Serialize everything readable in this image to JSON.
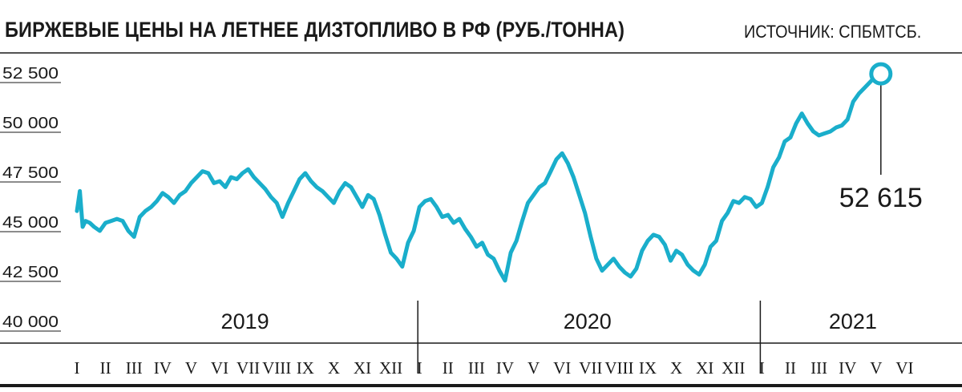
{
  "title": "БИРЖЕВЫЕ ЦЕНЫ НА ЛЕТНЕЕ ДИЗТОПЛИВО В РФ (РУБ./ТОННА)",
  "source": "ИСТОЧНИК: СПБМТСБ.",
  "colors": {
    "line": "#1aaecb",
    "text": "#1a1a1a",
    "rule": "#1a1a1a"
  },
  "chart_data": {
    "type": "line",
    "ylim": [
      40000,
      52500
    ],
    "yticks": [
      {
        "value": 52500,
        "label": "52 500"
      },
      {
        "value": 50000,
        "label": "50 000"
      },
      {
        "value": 47500,
        "label": "47 500"
      },
      {
        "value": 45000,
        "label": "45 000"
      },
      {
        "value": 42500,
        "label": "42 500"
      },
      {
        "value": 40000,
        "label": "40 000"
      }
    ],
    "years": [
      "2019",
      "2020",
      "2021"
    ],
    "months": [
      "I",
      "II",
      "III",
      "IV",
      "V",
      "VI",
      "VII",
      "VIII",
      "IX",
      "X",
      "XI",
      "XII",
      "I",
      "II",
      "III",
      "IV",
      "V",
      "VI",
      "VII",
      "VIII",
      "IX",
      "X",
      "XI",
      "XII",
      "I",
      "II",
      "III",
      "IV",
      "V",
      "VI"
    ],
    "last_value_label": "52 615",
    "series": [
      {
        "x_month_index": [
          0.0,
          0.1,
          0.2,
          0.3,
          0.45,
          0.6,
          0.8,
          1.0,
          1.2,
          1.4,
          1.6,
          1.8,
          2.0,
          2.2,
          2.4,
          2.6,
          2.8,
          3.0,
          3.2,
          3.4,
          3.6,
          3.8,
          4.0,
          4.2,
          4.4,
          4.6,
          4.8,
          5.0,
          5.2,
          5.4,
          5.6,
          5.8,
          6.0,
          6.2,
          6.4,
          6.6,
          6.8,
          7.0,
          7.2,
          7.4,
          7.6,
          7.8,
          8.0,
          8.2,
          8.4,
          8.6,
          8.8,
          9.0,
          9.2,
          9.4,
          9.6,
          9.8,
          10.0,
          10.2,
          10.4,
          10.6,
          10.8,
          11.0,
          11.2,
          11.4,
          11.6,
          11.8,
          12.0,
          12.2,
          12.4,
          12.6,
          12.8,
          13.0,
          13.2,
          13.4,
          13.6,
          13.8,
          14.0,
          14.2,
          14.4,
          14.6,
          14.8,
          15.0,
          15.2,
          15.4,
          15.6,
          15.8,
          16.0,
          16.2,
          16.4,
          16.6,
          16.8,
          17.0,
          17.2,
          17.4,
          17.6,
          17.8,
          18.0,
          18.2,
          18.4,
          18.6,
          18.8,
          19.0,
          19.2,
          19.4,
          19.6,
          19.8,
          20.0,
          20.2,
          20.4,
          20.6,
          20.8,
          21.0,
          21.2,
          21.4,
          21.6,
          21.8,
          22.0,
          22.2,
          22.4,
          22.6,
          22.8,
          23.0,
          23.2,
          23.4,
          23.6,
          23.8,
          24.0,
          24.2,
          24.4,
          24.6,
          24.8,
          25.0,
          25.2,
          25.4,
          25.6,
          25.8,
          26.0,
          26.2,
          26.4,
          26.6,
          26.8,
          27.0,
          27.2,
          27.4,
          27.6,
          27.8,
          28.0,
          28.2,
          28.4,
          28.6,
          28.8,
          28.95
        ],
        "values": [
          45800,
          46800,
          45000,
          45300,
          45200,
          45000,
          44800,
          45200,
          45300,
          45400,
          45300,
          44800,
          44500,
          45500,
          45800,
          46000,
          46300,
          46700,
          46500,
          46200,
          46600,
          46800,
          47200,
          47500,
          47800,
          47700,
          47200,
          47300,
          47000,
          47500,
          47400,
          47700,
          47900,
          47500,
          47200,
          46900,
          46500,
          46200,
          45500,
          46200,
          46800,
          47400,
          47700,
          47300,
          47000,
          46800,
          46500,
          46200,
          46800,
          47200,
          47000,
          46500,
          46000,
          46600,
          46400,
          45600,
          44600,
          43700,
          43400,
          43000,
          44200,
          44800,
          46000,
          46300,
          46400,
          46000,
          45500,
          45600,
          45200,
          45400,
          44900,
          44500,
          44000,
          44200,
          43600,
          43400,
          42800,
          42300,
          43700,
          44300,
          45300,
          46200,
          46600,
          47000,
          47200,
          47800,
          48400,
          48700,
          48200,
          47500,
          46600,
          45700,
          44500,
          43400,
          42800,
          43100,
          43400,
          43000,
          42700,
          42500,
          42900,
          43800,
          44300,
          44600,
          44500,
          44100,
          43300,
          43800,
          43600,
          43100,
          42800,
          42600,
          43100,
          44000,
          44300,
          45300,
          45700,
          46300,
          46200,
          46500,
          46400,
          46000,
          46200,
          47000,
          48000,
          48500,
          49300,
          49500,
          50200,
          50700,
          50200,
          49800,
          49600,
          49700,
          49800,
          50000,
          50100,
          50400,
          51300,
          51700,
          52000,
          52300,
          52615
        ]
      }
    ]
  }
}
